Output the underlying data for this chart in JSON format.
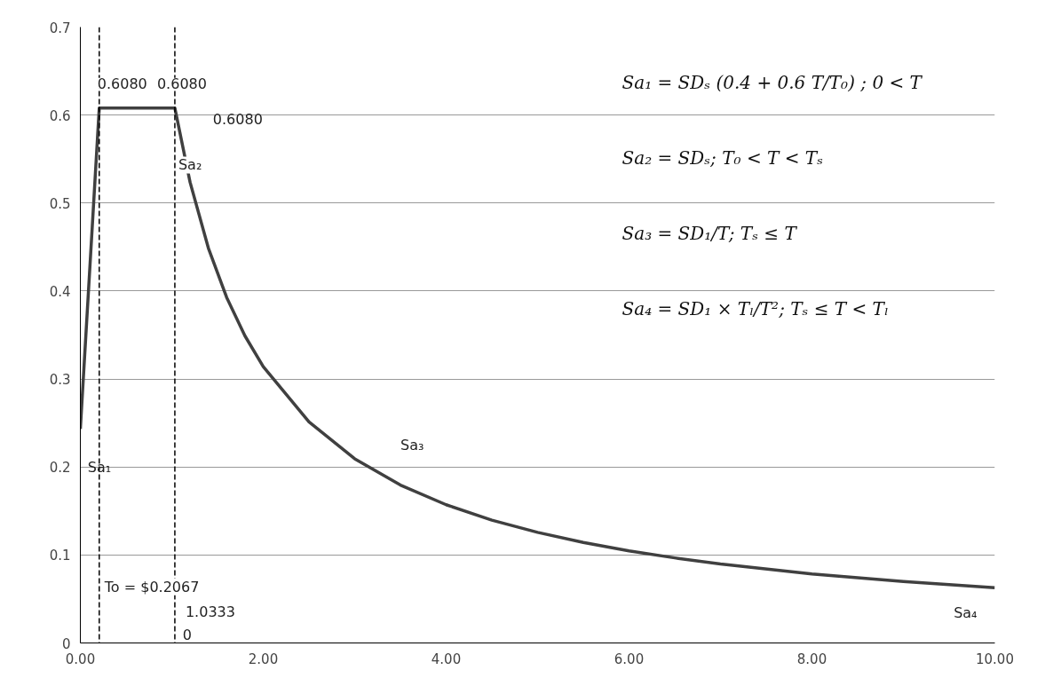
{
  "chart_data": {
    "type": "line",
    "x": [
      0,
      0.20666667,
      1.03333333,
      1.2,
      1.4,
      1.6,
      1.8,
      2,
      2.5,
      3,
      3.5,
      4,
      4.5,
      5,
      5.5,
      6,
      6.5,
      7,
      8,
      9,
      10
    ],
    "series": [
      {
        "color": "#404040",
        "values": [
          0.2432,
          0.608,
          0.608,
          0.5236,
          0.4488,
          0.3927,
          0.349,
          0.3141,
          0.2513,
          0.2094,
          0.1795,
          0.1571,
          0.1396,
          0.1257,
          0.1142,
          0.1047,
          0.0967,
          0.0898,
          0.0785,
          0.0698,
          0.0628
        ]
      }
    ],
    "xlim": [
      0,
      10
    ],
    "xticks": [
      {
        "value": 0,
        "label": "0.00"
      },
      {
        "value": 2,
        "label": "2.00"
      },
      {
        "value": 4,
        "label": "4.00"
      },
      {
        "value": 6,
        "label": "6.00"
      },
      {
        "value": 8,
        "label": "8.00"
      },
      {
        "value": 10,
        "label": "10.00"
      }
    ],
    "ylim": [
      0,
      0.7
    ],
    "yticks": [
      0,
      0.1,
      0.2,
      0.3,
      0.4,
      0.5,
      0.6,
      0.7
    ],
    "grid": "y",
    "marker": "none",
    "line_style": "solid",
    "ref_lines": [
      {
        "axis": "x",
        "value": 0.2067,
        "line_style": "dashed",
        "color": "#000000"
      },
      {
        "axis": "x",
        "value": 1.0333,
        "line_style": "dashed",
        "color": "#000000"
      }
    ],
    "annotations": [
      {
        "text": "0.6080",
        "x": 0.20666667,
        "y": 0.608
      },
      {
        "text": "0.6080",
        "x": 1.03333333,
        "y": 0.608
      },
      {
        "text": "Sa₂",
        "x": 1.0333,
        "y": 0.57
      },
      {
        "text": "To = $0.2067",
        "x": 0.2067,
        "y": 0.03
      },
      {
        "text": "1.0333",
        "x": 1.0333,
        "y": 0.03
      },
      "Sa₁",
      "Sa₃",
      "Sa₄",
      "0.6080",
      "0",
      "Sa₁ = SDₛ (0.4 + 0.6 T/T₀) ; 0 < T",
      "Sa₂ = SDₛ;  T₀ < T < Tₛ",
      "Sa₃ = SD₁/T;  Tₛ ≤ T",
      "Sa₄ = SD₁ × Tₗ/T²;  Tₛ ≤ T < Tₗ"
    ]
  }
}
